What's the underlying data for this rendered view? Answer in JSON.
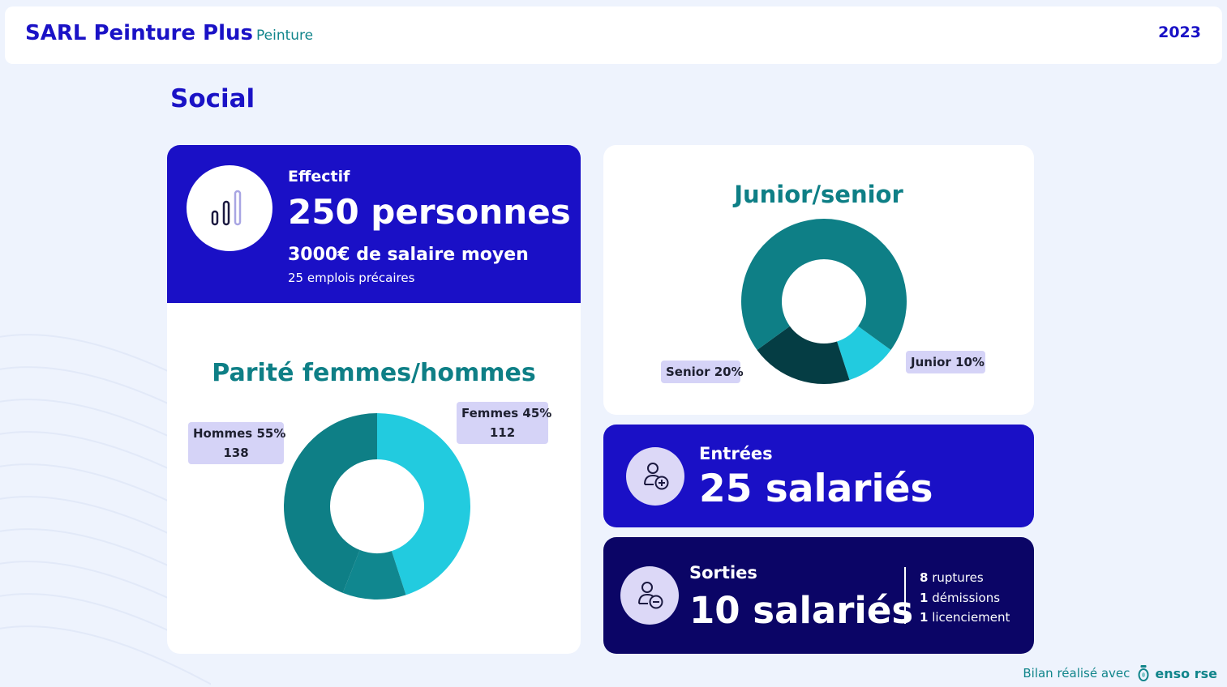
{
  "header": {
    "company": "SARL Peinture Plus",
    "activity": "Peinture",
    "year": "2023"
  },
  "section": {
    "title": "Social"
  },
  "effectif": {
    "label": "Effectif",
    "value": "250 personnes",
    "salary": "3000€ de salaire moyen",
    "precaires": "25 emplois précaires",
    "icon": "bar-chart-icon"
  },
  "parity": {
    "title": "Parité femmes/hommes",
    "hommes": {
      "label": "Hommes 55%",
      "count": "138"
    },
    "femmes": {
      "label": "Femmes 45%",
      "count": "112"
    }
  },
  "junior_senior": {
    "title": "Junior/senior",
    "senior_label": "Senior 20%",
    "junior_label": "Junior 10%"
  },
  "entrees": {
    "label": "Entrées",
    "value": "25 salariés",
    "icon": "user-add-icon"
  },
  "sorties": {
    "label": "Sorties",
    "value": "10 salariés",
    "icon": "user-remove-icon",
    "details": [
      {
        "count": "8",
        "text": "ruptures"
      },
      {
        "count": "1",
        "text": "démissions"
      },
      {
        "count": "1",
        "text": "licenciement"
      }
    ]
  },
  "footer": {
    "text": "Bilan réalisé avec",
    "brand": "enso rse",
    "icon": "enso-logo-icon"
  },
  "colors": {
    "brand_blue": "#1a10c6",
    "dark_navy": "#0b0566",
    "teal": "#0e7f86",
    "cyan": "#22cbdf",
    "dark_teal": "#053d44",
    "lavender": "#d5d3f7",
    "background": "#eef3fd"
  },
  "chart_data": [
    {
      "type": "pie",
      "title": "Parité femmes/hommes",
      "hole": true,
      "labels": [
        "Femmes",
        "Hommes"
      ],
      "values": [
        45,
        55
      ],
      "counts": [
        112,
        138
      ],
      "colors": [
        "#22cbdf",
        "#0e7f86"
      ]
    },
    {
      "type": "pie",
      "title": "Junior/senior",
      "hole": true,
      "labels": [
        "Junior",
        "Senior"
      ],
      "values": [
        10,
        20
      ],
      "colors": [
        "#22cbdf",
        "#053d44"
      ]
    }
  ]
}
